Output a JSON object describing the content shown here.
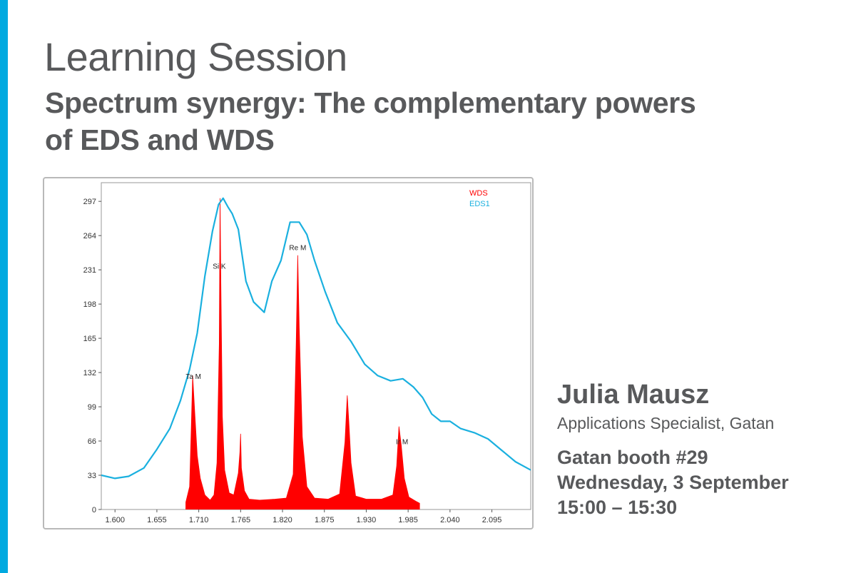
{
  "slide": {
    "kicker": "Learning Session",
    "headline": "Spectrum synergy: The complementary powers of EDS and WDS",
    "speaker_name": "Julia Mausz",
    "speaker_role": "Applications Specialist, Gatan",
    "event_lines": [
      "Gatan booth #29",
      "Wednesday, 3 September",
      "15:00 – 15:30"
    ],
    "colors": {
      "accent": "#00a9e0",
      "text": "#58595b"
    }
  },
  "chart_data": {
    "type": "line",
    "title": "",
    "xlabel": "",
    "ylabel": "",
    "xlim": [
      1.582,
      2.146
    ],
    "ylim": [
      0,
      315
    ],
    "x_ticks": [
      "1.600",
      "1.655",
      "1.710",
      "1.765",
      "1.820",
      "1.875",
      "1.930",
      "1.985",
      "2.040",
      "2.095"
    ],
    "y_ticks": [
      "0",
      "33",
      "66",
      "99",
      "132",
      "165",
      "198",
      "231",
      "264",
      "297"
    ],
    "grid": false,
    "legend_position": "top-right",
    "series": [
      {
        "name": "EDS1",
        "color": "#1ab0df",
        "style": "line",
        "x": [
          1.582,
          1.6,
          1.618,
          1.638,
          1.655,
          1.672,
          1.686,
          1.698,
          1.708,
          1.718,
          1.728,
          1.736,
          1.742,
          1.748,
          1.754,
          1.762,
          1.772,
          1.782,
          1.796,
          1.806,
          1.818,
          1.83,
          1.842,
          1.852,
          1.862,
          1.876,
          1.892,
          1.91,
          1.928,
          1.945,
          1.962,
          1.978,
          1.992,
          2.004,
          2.016,
          2.028,
          2.04,
          2.054,
          2.072,
          2.09,
          2.108,
          2.126,
          2.146
        ],
        "y": [
          33,
          30,
          32,
          40,
          58,
          78,
          105,
          135,
          170,
          225,
          268,
          294,
          300,
          292,
          285,
          270,
          220,
          200,
          190,
          220,
          240,
          277,
          277,
          265,
          240,
          210,
          180,
          162,
          140,
          129,
          124,
          126,
          118,
          108,
          92,
          85,
          85,
          78,
          74,
          68,
          57,
          46,
          38
        ]
      },
      {
        "name": "WDS",
        "color": "#ff0000",
        "style": "area",
        "x": [
          1.693,
          1.698,
          1.7,
          1.702,
          1.705,
          1.708,
          1.712,
          1.718,
          1.725,
          1.73,
          1.734,
          1.737,
          1.738,
          1.739,
          1.741,
          1.744,
          1.75,
          1.756,
          1.762,
          1.764,
          1.765,
          1.766,
          1.77,
          1.776,
          1.79,
          1.81,
          1.825,
          1.834,
          1.838,
          1.84,
          1.842,
          1.846,
          1.852,
          1.862,
          1.88,
          1.895,
          1.902,
          1.905,
          1.907,
          1.91,
          1.916,
          1.93,
          1.95,
          1.965,
          1.97,
          1.973,
          1.976,
          1.98,
          1.986,
          1.995,
          2.0
        ],
        "y": [
          7,
          22,
          75,
          129,
          90,
          52,
          30,
          14,
          9,
          14,
          45,
          160,
          300,
          220,
          90,
          38,
          16,
          14,
          35,
          55,
          73,
          40,
          18,
          10,
          9,
          10,
          11,
          34,
          160,
          245,
          175,
          70,
          22,
          11,
          10,
          15,
          65,
          110,
          86,
          45,
          13,
          10,
          10,
          14,
          42,
          80,
          62,
          30,
          12,
          8,
          6
        ]
      }
    ],
    "annotations": [
      {
        "text": "Ta M",
        "x": 1.703,
        "y": 126
      },
      {
        "text": "Si K",
        "x": 1.737,
        "y": 232
      },
      {
        "text": "Re M",
        "x": 1.84,
        "y": 250
      },
      {
        "text": "Ir M",
        "x": 1.977,
        "y": 63
      }
    ]
  }
}
